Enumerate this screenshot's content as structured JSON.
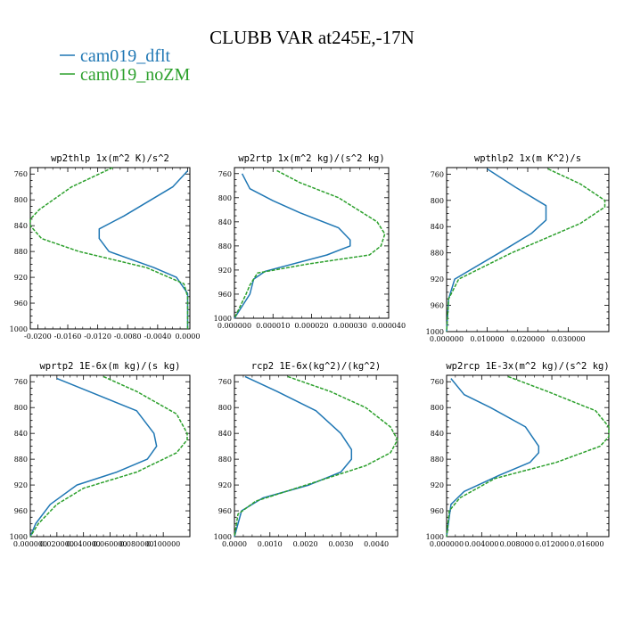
{
  "title": "CLUBB VAR at245E,-17N",
  "legend": [
    {
      "label": "cam019_dflt",
      "color": "#1f77b4"
    },
    {
      "label": "cam019_noZM",
      "color": "#2ca02c"
    }
  ],
  "chart_data": [
    {
      "type": "line",
      "title": "wp2thlp  1x(m^2 K)/s^2",
      "xlim": [
        -0.021,
        0.0003
      ],
      "ylim": [
        1000,
        750
      ],
      "xticks": [
        -0.02,
        -0.016,
        -0.012,
        -0.008,
        -0.004,
        0.0
      ],
      "xtick_labels": [
        "-0.0200",
        "-0.0160",
        "-0.0120",
        "-0.0080",
        "-0.0040",
        "0.0000"
      ],
      "yticks": [
        760,
        800,
        840,
        880,
        920,
        960,
        1000
      ],
      "series": [
        {
          "name": "cam019_dflt",
          "points": [
            [
              0.0,
              755
            ],
            [
              -0.002,
              780
            ],
            [
              -0.0085,
              825
            ],
            [
              -0.0118,
              845
            ],
            [
              -0.0118,
              860
            ],
            [
              -0.0105,
              880
            ],
            [
              -0.0045,
              905
            ],
            [
              -0.0015,
              920
            ],
            [
              0.0,
              945
            ],
            [
              0.0,
              1000
            ]
          ]
        },
        {
          "name": "cam019_noZM",
          "points": [
            [
              -0.01,
              750
            ],
            [
              -0.0155,
              780
            ],
            [
              -0.0198,
              815
            ],
            [
              -0.021,
              830
            ],
            [
              -0.021,
              840
            ],
            [
              -0.0195,
              860
            ],
            [
              -0.0145,
              880
            ],
            [
              -0.0055,
              905
            ],
            [
              -0.0005,
              930
            ],
            [
              0.0,
              950
            ],
            [
              0.0,
              1000
            ]
          ]
        }
      ]
    },
    {
      "type": "line",
      "title": "wp2rtp  1x(m^2 kg)/(s^2 kg)",
      "xlim": [
        0.0,
        4e-05
      ],
      "ylim": [
        1000,
        750
      ],
      "xticks": [
        0.0,
        1e-05,
        2e-05,
        3e-05,
        4e-05
      ],
      "xtick_labels": [
        "0.000000",
        "0.000010",
        "0.000020",
        "0.000030",
        "0.000040"
      ],
      "yticks": [
        760,
        800,
        840,
        880,
        920,
        960,
        1000
      ],
      "series": [
        {
          "name": "cam019_dflt",
          "points": [
            [
              2e-06,
              760
            ],
            [
              4e-06,
              785
            ],
            [
              1e-05,
              805
            ],
            [
              1.7e-05,
              825
            ],
            [
              2.7e-05,
              850
            ],
            [
              3e-05,
              870
            ],
            [
              3e-05,
              880
            ],
            [
              2.4e-05,
              895
            ],
            [
              8e-06,
              922
            ],
            [
              5e-06,
              935
            ],
            [
              4e-06,
              960
            ],
            [
              0.0,
              1000
            ]
          ]
        },
        {
          "name": "cam019_noZM",
          "points": [
            [
              1.1e-05,
              755
            ],
            [
              1.7e-05,
              775
            ],
            [
              2.7e-05,
              800
            ],
            [
              3.7e-05,
              840
            ],
            [
              3.9e-05,
              860
            ],
            [
              3.8e-05,
              880
            ],
            [
              3.5e-05,
              895
            ],
            [
              1.9e-05,
              910
            ],
            [
              6e-06,
              925
            ],
            [
              4e-06,
              945
            ],
            [
              3e-06,
              960
            ],
            [
              0.0,
              1000
            ]
          ]
        }
      ]
    },
    {
      "type": "line",
      "title": "wpthlp2  1x(m K^2)/s",
      "xlim": [
        0.0,
        0.04
      ],
      "ylim": [
        1000,
        750
      ],
      "xticks": [
        0.0,
        0.01,
        0.02,
        0.03
      ],
      "xtick_labels": [
        "0.000000",
        "0.010000",
        "0.020000",
        "0.030000"
      ],
      "yticks": [
        760,
        800,
        840,
        880,
        920,
        960,
        1000
      ],
      "series": [
        {
          "name": "cam019_dflt",
          "points": [
            [
              0.01,
              752
            ],
            [
              0.017,
              780
            ],
            [
              0.0245,
              808
            ],
            [
              0.0245,
              830
            ],
            [
              0.021,
              850
            ],
            [
              0.013,
              880
            ],
            [
              0.002,
              920
            ],
            [
              0.0005,
              950
            ],
            [
              0.0,
              1000
            ]
          ]
        },
        {
          "name": "cam019_noZM",
          "points": [
            [
              0.025,
              752
            ],
            [
              0.033,
              775
            ],
            [
              0.039,
              800
            ],
            [
              0.039,
              810
            ],
            [
              0.033,
              835
            ],
            [
              0.016,
              880
            ],
            [
              0.003,
              920
            ],
            [
              0.0005,
              950
            ],
            [
              0.0,
              1000
            ]
          ]
        }
      ]
    },
    {
      "type": "line",
      "title": "wprtp2  1E-6x(m kg)/(s kg)",
      "xlim": [
        0.0,
        0.12
      ],
      "ylim": [
        1000,
        750
      ],
      "xticks": [
        0.0,
        0.02,
        0.04,
        0.06,
        0.08,
        0.1
      ],
      "xtick_labels": [
        "0.000000",
        "0.020000",
        "0.040000",
        "0.060000",
        "0.080000",
        "0.100000"
      ],
      "yticks": [
        760,
        800,
        840,
        880,
        920,
        960,
        1000
      ],
      "series": [
        {
          "name": "cam019_dflt",
          "points": [
            [
              0.02,
              755
            ],
            [
              0.05,
              780
            ],
            [
              0.08,
              805
            ],
            [
              0.093,
              840
            ],
            [
              0.095,
              860
            ],
            [
              0.088,
              880
            ],
            [
              0.065,
              900
            ],
            [
              0.035,
              920
            ],
            [
              0.015,
              950
            ],
            [
              0.004,
              980
            ],
            [
              0.0,
              1000
            ]
          ]
        },
        {
          "name": "cam019_noZM",
          "points": [
            [
              0.055,
              752
            ],
            [
              0.08,
              775
            ],
            [
              0.11,
              810
            ],
            [
              0.118,
              840
            ],
            [
              0.118,
              850
            ],
            [
              0.11,
              870
            ],
            [
              0.08,
              900
            ],
            [
              0.04,
              925
            ],
            [
              0.02,
              950
            ],
            [
              0.006,
              980
            ],
            [
              0.0,
              1000
            ]
          ]
        }
      ]
    },
    {
      "type": "line",
      "title": "rcp2  1E-6x(kg^2)/(kg^2)",
      "xlim": [
        0.0,
        0.0046
      ],
      "ylim": [
        1000,
        750
      ],
      "xticks": [
        0.0,
        0.001,
        0.002,
        0.003,
        0.004
      ],
      "xtick_labels": [
        "0.0000",
        "0.0010",
        "0.0020",
        "0.0030",
        "0.0040"
      ],
      "yticks": [
        760,
        800,
        840,
        880,
        920,
        960,
        1000
      ],
      "series": [
        {
          "name": "cam019_dflt",
          "points": [
            [
              0.0003,
              752
            ],
            [
              0.0012,
              775
            ],
            [
              0.0023,
              805
            ],
            [
              0.003,
              840
            ],
            [
              0.0033,
              865
            ],
            [
              0.0033,
              880
            ],
            [
              0.003,
              900
            ],
            [
              0.0021,
              920
            ],
            [
              0.0008,
              940
            ],
            [
              0.0002,
              960
            ],
            [
              0.0,
              1000
            ]
          ]
        },
        {
          "name": "cam019_noZM",
          "points": [
            [
              0.0015,
              752
            ],
            [
              0.0027,
              775
            ],
            [
              0.0037,
              800
            ],
            [
              0.0044,
              830
            ],
            [
              0.0046,
              850
            ],
            [
              0.0044,
              870
            ],
            [
              0.0037,
              890
            ],
            [
              0.0023,
              915
            ],
            [
              0.0006,
              945
            ],
            [
              0.0001,
              965
            ],
            [
              0.0,
              1000
            ]
          ]
        }
      ]
    },
    {
      "type": "line",
      "title": "wp2rcp  1E-3x(m^2 kg)/(s^2 kg)",
      "xlim": [
        0.0,
        0.0185
      ],
      "ylim": [
        1000,
        750
      ],
      "xticks": [
        0.0,
        0.004,
        0.008,
        0.012,
        0.016
      ],
      "xtick_labels": [
        "0.000000",
        "0.004000",
        "0.008000",
        "0.012000",
        "0.016000"
      ],
      "yticks": [
        760,
        800,
        840,
        880,
        920,
        960,
        1000
      ],
      "series": [
        {
          "name": "cam019_dflt",
          "points": [
            [
              0.0005,
              755
            ],
            [
              0.002,
              780
            ],
            [
              0.005,
              800
            ],
            [
              0.009,
              830
            ],
            [
              0.0105,
              860
            ],
            [
              0.0105,
              870
            ],
            [
              0.0095,
              885
            ],
            [
              0.006,
              905
            ],
            [
              0.002,
              930
            ],
            [
              0.0005,
              950
            ],
            [
              0.0,
              1000
            ]
          ]
        },
        {
          "name": "cam019_noZM",
          "points": [
            [
              0.007,
              752
            ],
            [
              0.0115,
              775
            ],
            [
              0.017,
              805
            ],
            [
              0.0185,
              830
            ],
            [
              0.0185,
              845
            ],
            [
              0.0175,
              860
            ],
            [
              0.0125,
              885
            ],
            [
              0.0055,
              910
            ],
            [
              0.0015,
              940
            ],
            [
              0.0003,
              960
            ],
            [
              0.0,
              1000
            ]
          ]
        }
      ]
    }
  ]
}
